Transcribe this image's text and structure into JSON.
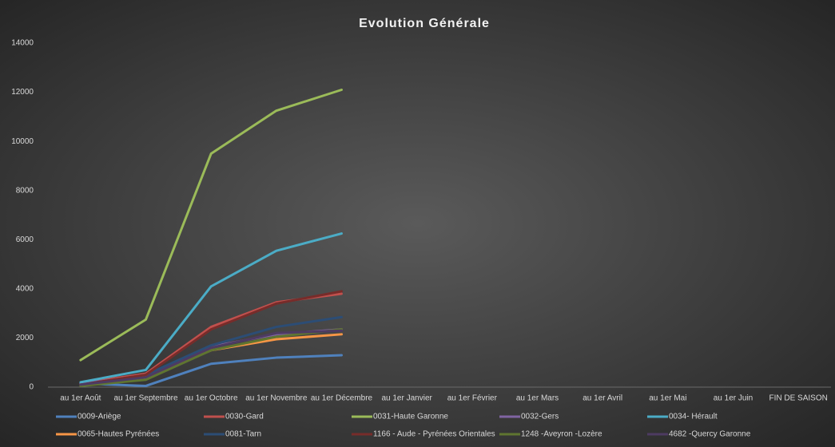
{
  "chart_data": {
    "type": "line",
    "title": "Evolution Générale",
    "categories": [
      "au 1er Août",
      "au 1er Septembre",
      "au 1er Octobre",
      "au 1er Novembre",
      "au 1er Décembre",
      "au 1er Janvier",
      "au 1er Février",
      "au 1er Mars",
      "au 1er Avril",
      "au 1er Mai",
      "au 1er Juin",
      "FIN DE SAISON"
    ],
    "series": [
      {
        "name": "0009-Ariège",
        "color": "#4f81bd",
        "values": [
          150,
          50,
          950,
          1200,
          1300,
          null,
          null,
          null,
          null,
          null,
          null,
          null
        ]
      },
      {
        "name": "0030-Gard",
        "color": "#c0504d",
        "values": [
          150,
          550,
          2450,
          3450,
          3800,
          null,
          null,
          null,
          null,
          null,
          null,
          null
        ]
      },
      {
        "name": "0031-Haute Garonne",
        "color": "#9bbb59",
        "values": [
          1100,
          2750,
          9500,
          11250,
          12100,
          null,
          null,
          null,
          null,
          null,
          null,
          null
        ]
      },
      {
        "name": "0032-Gers",
        "color": "#8064a2",
        "values": [
          150,
          450,
          1650,
          2150,
          2350,
          null,
          null,
          null,
          null,
          null,
          null,
          null
        ]
      },
      {
        "name": "0034- Hérault",
        "color": "#4bacc6",
        "values": [
          200,
          700,
          4100,
          5550,
          6250,
          null,
          null,
          null,
          null,
          null,
          null,
          null
        ]
      },
      {
        "name": "0065-Hautes Pyrénées",
        "color": "#f79646",
        "values": [
          100,
          400,
          1500,
          1950,
          2150,
          null,
          null,
          null,
          null,
          null,
          null,
          null
        ]
      },
      {
        "name": "0081-Tarn",
        "color": "#2c4d75",
        "values": [
          100,
          500,
          1700,
          2450,
          2850,
          null,
          null,
          null,
          null,
          null,
          null,
          null
        ]
      },
      {
        "name": "1166 - Aude - Pyrénées Orientales",
        "color": "#772c2a",
        "values": [
          100,
          500,
          2350,
          3400,
          3900,
          null,
          null,
          null,
          null,
          null,
          null,
          null
        ]
      },
      {
        "name": "1248 -Aveyron -Lozère",
        "color": "#5f7530",
        "values": [
          50,
          300,
          1500,
          2050,
          2350,
          null,
          null,
          null,
          null,
          null,
          null,
          null
        ]
      },
      {
        "name": "4682 -Quercy Garonne",
        "color": "#4d3b62",
        "values": [
          100,
          400,
          1600,
          2200,
          2300,
          null,
          null,
          null,
          null,
          null,
          null,
          null
        ]
      }
    ],
    "ylim": [
      0,
      14000
    ],
    "yticks": [
      0,
      2000,
      4000,
      6000,
      8000,
      10000,
      12000,
      14000
    ],
    "grid": false
  }
}
